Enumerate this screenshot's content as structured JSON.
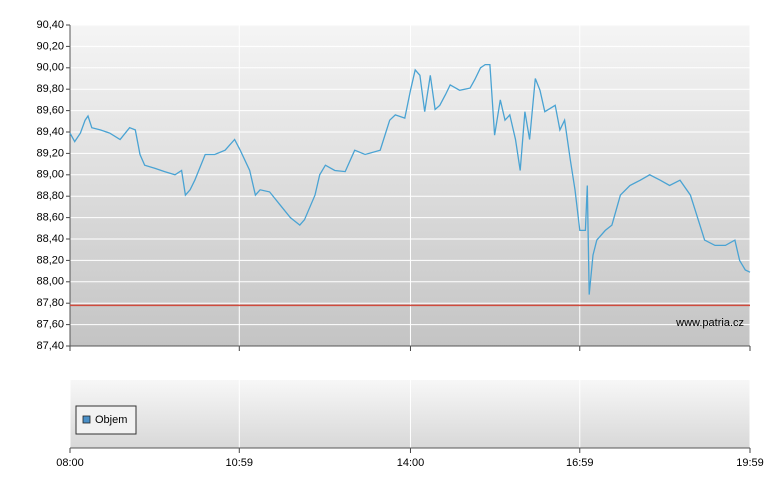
{
  "chart_data": {
    "type": "line",
    "x": [
      480,
      485,
      491,
      496,
      499,
      503,
      512,
      522,
      533,
      543,
      549,
      554,
      559,
      570,
      580,
      591,
      598,
      602,
      607,
      612,
      623,
      633,
      644,
      654,
      660,
      670,
      676,
      681,
      691,
      702,
      713,
      723,
      728,
      739,
      744,
      750,
      760,
      771,
      781,
      792,
      808,
      818,
      824,
      834,
      840,
      845,
      850,
      855,
      861,
      866,
      871,
      877,
      882,
      892,
      903,
      908,
      914,
      919,
      924,
      929,
      935,
      940,
      945,
      951,
      956,
      961,
      966,
      972,
      977,
      982,
      993,
      998,
      1003,
      1009,
      1014,
      1019,
      1025,
      1027,
      1029,
      1033,
      1037,
      1046,
      1053,
      1062,
      1072,
      1083,
      1093,
      1104,
      1114,
      1125,
      1136,
      1146,
      1151,
      1162,
      1173,
      1183,
      1188,
      1194,
      1199
    ],
    "series": [
      {
        "color": "#4aa3d3",
        "values": [
          89.39,
          89.31,
          89.39,
          89.51,
          89.55,
          89.44,
          89.42,
          89.39,
          89.33,
          89.44,
          89.42,
          89.19,
          89.09,
          89.06,
          89.03,
          89.0,
          89.04,
          88.81,
          88.86,
          88.95,
          89.19,
          89.19,
          89.23,
          89.33,
          89.23,
          89.04,
          88.81,
          88.86,
          88.84,
          88.72,
          88.6,
          88.53,
          88.58,
          88.81,
          89.0,
          89.09,
          89.04,
          89.03,
          89.23,
          89.19,
          89.23,
          89.51,
          89.56,
          89.53,
          89.79,
          89.98,
          89.93,
          89.59,
          89.93,
          89.61,
          89.65,
          89.75,
          89.84,
          89.79,
          89.81,
          89.89,
          90.0,
          90.03,
          90.03,
          89.37,
          89.7,
          89.51,
          89.56,
          89.33,
          89.04,
          89.59,
          89.33,
          89.9,
          89.79,
          89.59,
          89.65,
          89.42,
          89.51,
          89.14,
          88.86,
          88.48,
          88.48,
          88.9,
          87.88,
          88.25,
          88.39,
          88.48,
          88.53,
          88.81,
          88.9,
          88.95,
          89.0,
          88.95,
          88.9,
          88.95,
          88.81,
          88.53,
          88.39,
          88.34,
          88.34,
          88.39,
          88.2,
          88.11,
          88.09
        ]
      }
    ],
    "xlim": [
      480,
      1199
    ],
    "xticks": [
      {
        "value": 480,
        "label": "08:00"
      },
      {
        "value": 659,
        "label": "10:59"
      },
      {
        "value": 840,
        "label": "14:00"
      },
      {
        "value": 1019,
        "label": "16:59"
      },
      {
        "value": 1199,
        "label": "19:59"
      }
    ],
    "ylim": [
      87.4,
      90.4
    ],
    "yticks": [
      {
        "value": 87.4,
        "label": "87,40"
      },
      {
        "value": 87.6,
        "label": "87,60"
      },
      {
        "value": 87.8,
        "label": "87,80"
      },
      {
        "value": 88.0,
        "label": "88,00"
      },
      {
        "value": 88.2,
        "label": "88,20"
      },
      {
        "value": 88.4,
        "label": "88,40"
      },
      {
        "value": 88.6,
        "label": "88,60"
      },
      {
        "value": 88.8,
        "label": "88,80"
      },
      {
        "value": 89.0,
        "label": "89,00"
      },
      {
        "value": 89.2,
        "label": "89,20"
      },
      {
        "value": 89.4,
        "label": "89,40"
      },
      {
        "value": 89.6,
        "label": "89,60"
      },
      {
        "value": 89.8,
        "label": "89,80"
      },
      {
        "value": 90.0,
        "label": "90,00"
      },
      {
        "value": 90.2,
        "label": "90,20"
      },
      {
        "value": 90.4,
        "label": "90,40"
      }
    ],
    "grid": true,
    "reference_line": {
      "value": 87.78,
      "color": "#d04a3c"
    },
    "watermark": "www.patria.cz",
    "volume_panel": {
      "legend": "Objem",
      "color": "#4a90c8"
    }
  }
}
